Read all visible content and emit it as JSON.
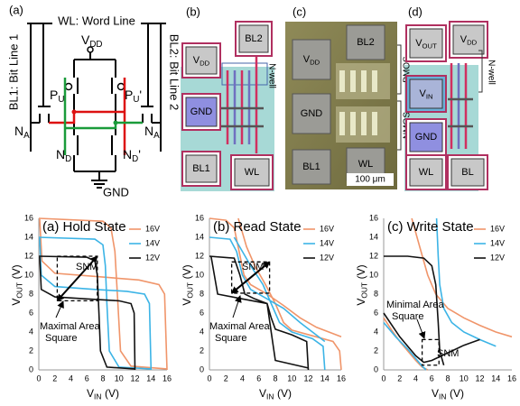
{
  "panels": {
    "a": {
      "label": "(a)",
      "word_line": "WL: Word Line",
      "bit_line_1": "BL1: Bit Line 1",
      "bit_line_2": "BL2: Bit Line 2",
      "vdd": {
        "main": "V",
        "sub": "DD"
      },
      "gnd": "GND",
      "pu": {
        "main": "P",
        "sub": "U"
      },
      "pu2": {
        "main": "P",
        "sub": "U",
        "suffix": "'"
      },
      "na": {
        "main": "N",
        "sub": "A"
      },
      "na2": {
        "main": "N",
        "sub": "A",
        "suffix": "'"
      },
      "nd": {
        "main": "N",
        "sub": "D"
      },
      "nd2": {
        "main": "N",
        "sub": "D",
        "suffix": "'"
      }
    },
    "b": {
      "label": "(b)",
      "vdd": {
        "main": "V",
        "sub": "DD"
      },
      "bl2": "BL2",
      "gnd": "GND",
      "bl1": "BL1",
      "wl": "WL",
      "nwell": "N-well"
    },
    "c": {
      "label": "(c)",
      "vdd": {
        "main": "V",
        "sub": "DD"
      },
      "bl2": "BL2",
      "gnd": "GND",
      "bl1": "BL1",
      "wl": "WL",
      "pmos": "PMOS",
      "nmos": "NMOS",
      "scale": "100 μm"
    },
    "d": {
      "label": "(d)",
      "vout": {
        "main": "V",
        "sub": "OUT"
      },
      "vdd": {
        "main": "V",
        "sub": "DD"
      },
      "vin": {
        "main": "V",
        "sub": "IN"
      },
      "gnd": "GND",
      "wl": "WL",
      "bl": "BL",
      "nwell": "N-well"
    }
  },
  "chart_data": [
    {
      "type": "line",
      "title": "(a) Hold State",
      "xlabel": {
        "main": "V",
        "sub": "IN",
        "unit": "(V)"
      },
      "ylabel": {
        "main": "V",
        "sub": "OUT",
        "unit": "(V)"
      },
      "xlim": [
        0,
        16
      ],
      "ylim": [
        0,
        16
      ],
      "xticks": [
        0,
        2,
        4,
        6,
        8,
        10,
        12,
        14,
        16
      ],
      "yticks": [
        0,
        2,
        4,
        6,
        8,
        10,
        12,
        14,
        16
      ],
      "grid": false,
      "series": [
        {
          "name": "16V",
          "color": "#f0956a",
          "x": [
            0,
            8,
            9,
            9.5,
            9.8,
            10.2,
            11.5,
            16,
            null,
            16,
            15.7,
            15,
            12.5,
            8,
            2,
            0.4,
            0.1
          ],
          "values": [
            16,
            15.7,
            15,
            12.5,
            8,
            2,
            0.4,
            0.1,
            null,
            0,
            8,
            9,
            9.5,
            9.8,
            10.2,
            11.5,
            16
          ]
        },
        {
          "name": "14V",
          "color": "#3cb4e6",
          "x": [
            0,
            7,
            8,
            8.3,
            8.5,
            8.8,
            10,
            14,
            null,
            14,
            13.8,
            13.2,
            11,
            7,
            2,
            0.3,
            0.1
          ],
          "values": [
            14,
            13.8,
            13.2,
            11,
            7,
            2,
            0.3,
            0.1,
            null,
            0,
            7,
            8,
            8.3,
            8.5,
            8.8,
            10,
            14
          ]
        },
        {
          "name": "12V",
          "color": "#111111",
          "x": [
            0,
            6,
            7,
            7.3,
            7.5,
            7.7,
            8.5,
            12,
            null,
            12,
            11.9,
            11.5,
            10,
            6,
            2,
            0.3,
            0.1
          ],
          "values": [
            12,
            11.9,
            11.5,
            10,
            6,
            2,
            0.3,
            0.1,
            null,
            0,
            6,
            7,
            7.3,
            7.5,
            7.7,
            8.5,
            12
          ]
        }
      ],
      "legend": "upper right",
      "snm_box": {
        "x": [
          2.3,
          7.3
        ],
        "y": [
          7.3,
          12
        ]
      },
      "annotations": {
        "snm": "SNM",
        "square": [
          "Maximal Area",
          "Square"
        ]
      }
    },
    {
      "type": "line",
      "title": "(b) Read State",
      "xlabel": {
        "main": "V",
        "sub": "IN",
        "unit": "(V)"
      },
      "ylabel": {
        "main": "V",
        "sub": "OUT",
        "unit": "(V)"
      },
      "xlim": [
        0,
        16
      ],
      "ylim": [
        0,
        16
      ],
      "xticks": [
        0,
        2,
        4,
        6,
        8,
        10,
        12,
        14,
        16
      ],
      "yticks": [
        0,
        2,
        4,
        6,
        8,
        10,
        12,
        14,
        16
      ],
      "grid": false,
      "series": [
        {
          "name": "16V",
          "color": "#f0956a",
          "x": [
            0,
            2,
            3,
            3.6,
            4.2,
            5,
            7,
            9,
            11,
            13,
            16,
            null,
            16,
            15.8,
            15,
            12.5,
            10,
            9,
            8,
            6.8,
            5.5,
            4.5,
            3.5
          ],
          "values": [
            16,
            15.8,
            15,
            12.5,
            10,
            9,
            8,
            6.8,
            5.5,
            4.5,
            3.5,
            null,
            0,
            2,
            3,
            3.6,
            4.2,
            5,
            7,
            9,
            11,
            13,
            16
          ]
        },
        {
          "name": "14V",
          "color": "#3cb4e6",
          "x": [
            0,
            2.5,
            3.3,
            4,
            5,
            7,
            9,
            11,
            14,
            null,
            14,
            13.8,
            12.5,
            10,
            8.5,
            7.5,
            6.5,
            5,
            3
          ],
          "values": [
            14,
            13.8,
            12.5,
            10,
            8.5,
            7.5,
            6.5,
            5,
            3,
            null,
            0,
            2.5,
            3.3,
            4,
            5,
            7,
            9,
            11,
            14
          ]
        },
        {
          "name": "12V",
          "color": "#111111",
          "x": [
            0,
            3,
            3.7,
            4.3,
            5.5,
            7,
            7.5,
            8,
            12,
            null,
            12,
            11.8,
            10,
            8,
            7.5,
            7,
            4,
            1,
            0.2
          ],
          "values": [
            12,
            11.8,
            10,
            8,
            7.5,
            7,
            4,
            1,
            0.2,
            null,
            0,
            3,
            3.7,
            4.3,
            5.5,
            7,
            7.5,
            8,
            12
          ]
        }
      ],
      "legend": "upper right",
      "snm_box": {
        "x": [
          2.7,
          7.3
        ],
        "y": [
          8.1,
          11.4
        ]
      },
      "annotations": {
        "snm": "SNM",
        "square": [
          "Maximal Area",
          "Square"
        ]
      }
    },
    {
      "type": "line",
      "title": "(c) Write State",
      "xlabel": {
        "main": "V",
        "sub": "IN",
        "unit": "(V)"
      },
      "ylabel": {
        "main": "V",
        "sub": "OUT",
        "unit": "(V)"
      },
      "xlim": [
        0,
        16
      ],
      "ylim": [
        0,
        16
      ],
      "xticks": [
        0,
        2,
        4,
        6,
        8,
        10,
        12,
        14,
        16
      ],
      "yticks": [
        0,
        2,
        4,
        6,
        8,
        10,
        12,
        14,
        16
      ],
      "grid": false,
      "series": [
        {
          "name": "16V",
          "color": "#f0956a",
          "x": [
            3.5,
            4.5,
            5.5,
            6.5,
            8,
            10,
            12,
            14,
            16,
            null,
            0,
            1,
            2,
            3,
            4,
            4.8,
            5.5
          ],
          "values": [
            16,
            13,
            10,
            8,
            6.5,
            5.5,
            4.7,
            4,
            3.5,
            null,
            5.5,
            4.2,
            3,
            2,
            1,
            0.3,
            0
          ]
        },
        {
          "name": "14V",
          "color": "#3cb4e6",
          "x": [
            6.6,
            6.8,
            7,
            7.5,
            8.5,
            10,
            12,
            14,
            null,
            0,
            1.5,
            3,
            4,
            4.8,
            5.3
          ],
          "values": [
            16,
            12,
            9,
            6.5,
            5,
            4,
            3.2,
            2.5,
            null,
            5,
            3.5,
            2.2,
            1.2,
            0.4,
            0
          ]
        },
        {
          "name": "12V",
          "color": "#111111",
          "x": [
            0,
            3,
            5,
            6,
            6.5,
            6.8,
            7,
            7.5,
            null,
            0,
            2,
            4,
            5,
            6,
            8,
            10,
            12
          ],
          "values": [
            12,
            12,
            11.8,
            11,
            9,
            5,
            2,
            0.5,
            null,
            6,
            3.5,
            1.5,
            0.8,
            1,
            1.8,
            2.6,
            3.2
          ]
        }
      ],
      "legend": "upper right",
      "snm_box": {
        "x": [
          4.8,
          6.9
        ],
        "y": [
          0.5,
          3.2
        ]
      },
      "annotations": {
        "snm": "SNM",
        "square": [
          "Minimal Area",
          "Square"
        ]
      }
    }
  ]
}
